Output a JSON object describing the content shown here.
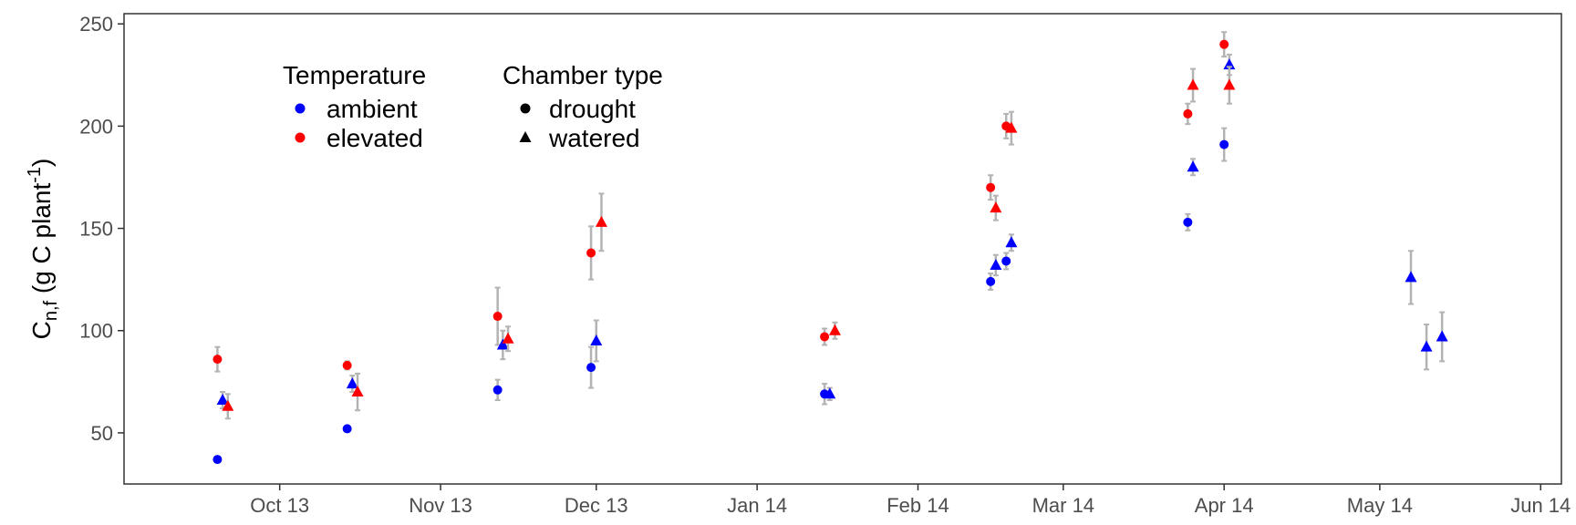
{
  "chart_data": {
    "type": "scatter",
    "ylabel": {
      "main": "C",
      "sub": "n,f",
      "rest": " (g C plant",
      "sup": "-1",
      "close": ")"
    },
    "xlabel": "",
    "xlim": [
      "2013-09-01",
      "2014-06-05"
    ],
    "ylim": [
      25,
      255
    ],
    "y_ticks": [
      50,
      100,
      150,
      200,
      250
    ],
    "x_ticks": [
      {
        "date": "2013-10-01",
        "label": "Oct 13"
      },
      {
        "date": "2013-11-01",
        "label": "Nov 13"
      },
      {
        "date": "2013-12-01",
        "label": "Dec 13"
      },
      {
        "date": "2014-01-01",
        "label": "Jan 14"
      },
      {
        "date": "2014-02-01",
        "label": "Feb 14"
      },
      {
        "date": "2014-03-01",
        "label": "Mar 14"
      },
      {
        "date": "2014-04-01",
        "label": "Apr 14"
      },
      {
        "date": "2014-05-01",
        "label": "May 14"
      },
      {
        "date": "2014-06-01",
        "label": "Jun 14"
      }
    ],
    "grid": false,
    "legend": {
      "position": "top-left",
      "temperature": {
        "title": "Temperature",
        "items": [
          {
            "label": "ambient",
            "color": "#0000ff"
          },
          {
            "label": "elevated",
            "color": "#ff0000"
          }
        ]
      },
      "chamber": {
        "title": "Chamber type",
        "items": [
          {
            "label": "drought",
            "shape": "circle"
          },
          {
            "label": "watered",
            "shape": "triangle"
          }
        ]
      }
    },
    "colors": {
      "ambient": "#0000ff",
      "elevated": "#ff0000",
      "error_bar": "#b3b3b3"
    },
    "points": [
      {
        "date": "2013-09-19",
        "y": 37,
        "err": 1,
        "temp": "ambient",
        "chamber": "drought"
      },
      {
        "date": "2013-09-19",
        "y": 86,
        "err": 6,
        "temp": "elevated",
        "chamber": "drought"
      },
      {
        "date": "2013-09-20",
        "y": 66,
        "err": 4,
        "temp": "ambient",
        "chamber": "watered"
      },
      {
        "date": "2013-09-21",
        "y": 63,
        "err": 6,
        "temp": "elevated",
        "chamber": "watered"
      },
      {
        "date": "2013-10-14",
        "y": 52,
        "err": 1,
        "temp": "ambient",
        "chamber": "drought"
      },
      {
        "date": "2013-10-14",
        "y": 83,
        "err": 2,
        "temp": "elevated",
        "chamber": "drought"
      },
      {
        "date": "2013-10-15",
        "y": 74,
        "err": 4,
        "temp": "ambient",
        "chamber": "watered"
      },
      {
        "date": "2013-10-16",
        "y": 70,
        "err": 9,
        "temp": "elevated",
        "chamber": "watered"
      },
      {
        "date": "2013-11-12",
        "y": 71,
        "err": 5,
        "temp": "ambient",
        "chamber": "drought"
      },
      {
        "date": "2013-11-12",
        "y": 107,
        "err": 14,
        "temp": "elevated",
        "chamber": "drought"
      },
      {
        "date": "2013-11-13",
        "y": 93,
        "err": 7,
        "temp": "ambient",
        "chamber": "watered"
      },
      {
        "date": "2013-11-14",
        "y": 96,
        "err": 6,
        "temp": "elevated",
        "chamber": "watered"
      },
      {
        "date": "2013-11-30",
        "y": 82,
        "err": 10,
        "temp": "ambient",
        "chamber": "drought"
      },
      {
        "date": "2013-11-30",
        "y": 138,
        "err": 13,
        "temp": "elevated",
        "chamber": "drought"
      },
      {
        "date": "2013-12-01",
        "y": 95,
        "err": 10,
        "temp": "ambient",
        "chamber": "watered"
      },
      {
        "date": "2013-12-02",
        "y": 153,
        "err": 14,
        "temp": "elevated",
        "chamber": "watered"
      },
      {
        "date": "2014-01-14",
        "y": 69,
        "err": 5,
        "temp": "ambient",
        "chamber": "drought"
      },
      {
        "date": "2014-01-14",
        "y": 97,
        "err": 4,
        "temp": "elevated",
        "chamber": "drought"
      },
      {
        "date": "2014-01-15",
        "y": 69,
        "err": 3,
        "temp": "ambient",
        "chamber": "watered"
      },
      {
        "date": "2014-01-16",
        "y": 100,
        "err": 4,
        "temp": "elevated",
        "chamber": "watered"
      },
      {
        "date": "2014-02-15",
        "y": 124,
        "err": 4,
        "temp": "ambient",
        "chamber": "drought"
      },
      {
        "date": "2014-02-15",
        "y": 170,
        "err": 6,
        "temp": "elevated",
        "chamber": "drought"
      },
      {
        "date": "2014-02-16",
        "y": 132,
        "err": 5,
        "temp": "ambient",
        "chamber": "watered"
      },
      {
        "date": "2014-02-16",
        "y": 160,
        "err": 6,
        "temp": "elevated",
        "chamber": "watered"
      },
      {
        "date": "2014-02-18",
        "y": 134,
        "err": 4,
        "temp": "ambient",
        "chamber": "drought"
      },
      {
        "date": "2014-02-18",
        "y": 200,
        "err": 6,
        "temp": "elevated",
        "chamber": "drought"
      },
      {
        "date": "2014-02-19",
        "y": 143,
        "err": 4,
        "temp": "ambient",
        "chamber": "watered"
      },
      {
        "date": "2014-02-19",
        "y": 199,
        "err": 8,
        "temp": "elevated",
        "chamber": "watered"
      },
      {
        "date": "2014-03-25",
        "y": 153,
        "err": 4,
        "temp": "ambient",
        "chamber": "drought"
      },
      {
        "date": "2014-03-25",
        "y": 206,
        "err": 5,
        "temp": "elevated",
        "chamber": "drought"
      },
      {
        "date": "2014-03-26",
        "y": 180,
        "err": 4,
        "temp": "ambient",
        "chamber": "watered"
      },
      {
        "date": "2014-03-26",
        "y": 220,
        "err": 8,
        "temp": "elevated",
        "chamber": "watered"
      },
      {
        "date": "2014-04-01",
        "y": 191,
        "err": 8,
        "temp": "ambient",
        "chamber": "drought"
      },
      {
        "date": "2014-04-01",
        "y": 240,
        "err": 6,
        "temp": "elevated",
        "chamber": "drought"
      },
      {
        "date": "2014-04-02",
        "y": 230,
        "err": 5,
        "temp": "ambient",
        "chamber": "watered"
      },
      {
        "date": "2014-04-02",
        "y": 220,
        "err": 9,
        "temp": "elevated",
        "chamber": "watered"
      },
      {
        "date": "2014-05-07",
        "y": 126,
        "err": 13,
        "temp": "ambient",
        "chamber": "watered"
      },
      {
        "date": "2014-05-10",
        "y": 92,
        "err": 11,
        "temp": "ambient",
        "chamber": "watered"
      },
      {
        "date": "2014-05-13",
        "y": 97,
        "err": 12,
        "temp": "ambient",
        "chamber": "watered"
      }
    ]
  }
}
